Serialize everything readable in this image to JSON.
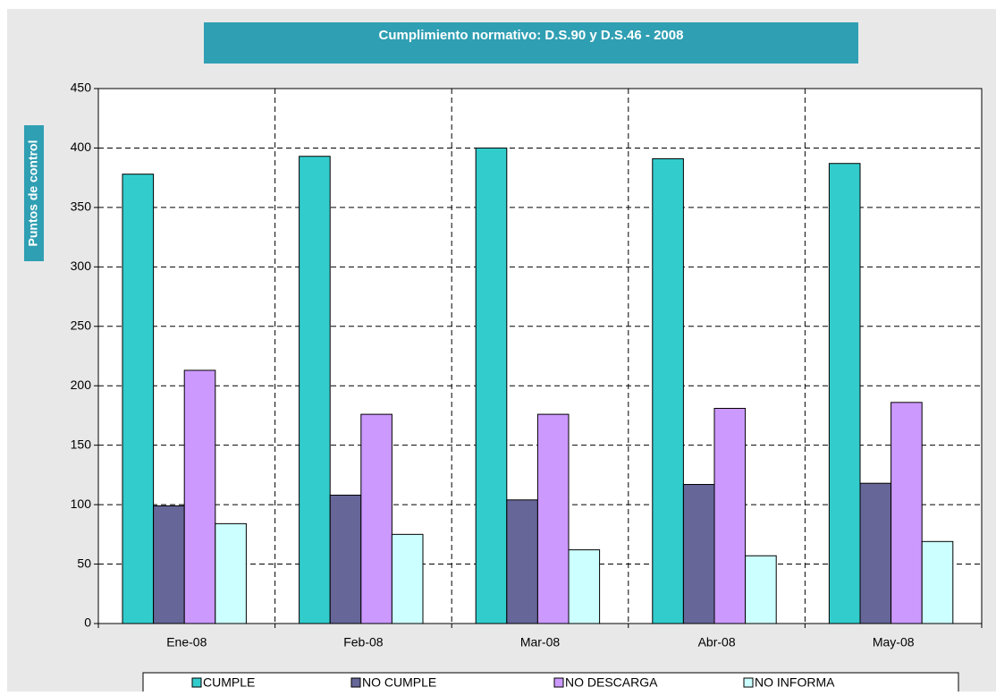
{
  "chart_data": {
    "type": "bar",
    "title": "Cumplimiento normativo: D.S.90 y D.S.46 - 2008",
    "y_label": "Puntos de control",
    "categories": [
      "Ene-08",
      "Feb-08",
      "Mar-08",
      "Abr-08",
      "May-08"
    ],
    "series": [
      {
        "name": "CUMPLE",
        "color": "#33cccc",
        "values": [
          378,
          393,
          400,
          391,
          387
        ]
      },
      {
        "name": "NO CUMPLE",
        "color": "#666699",
        "values": [
          99,
          108,
          104,
          117,
          118
        ]
      },
      {
        "name": "NO DESCARGA",
        "color": "#cc99ff",
        "values": [
          213,
          176,
          176,
          181,
          186
        ]
      },
      {
        "name": "NO INFORMA",
        "color": "#ccffff",
        "values": [
          84,
          75,
          62,
          57,
          69
        ]
      }
    ],
    "ylim": [
      0,
      450
    ],
    "yticks": [
      0,
      50,
      100,
      150,
      200,
      250,
      300,
      350,
      400,
      450
    ],
    "grid": true
  }
}
